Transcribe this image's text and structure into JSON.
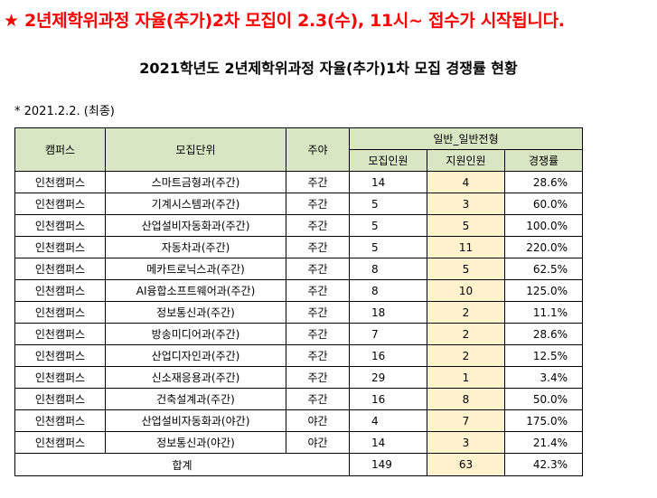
{
  "notice": "★ 2년제학위과정 자율(추가)2차 모집이 2.3(수), 11시~ 접수가 시작됩니다.",
  "title": "2021학년도 2년제학위과정 자율(추가)1차 모집 경쟁률 현황",
  "date_note": "* 2021.2.2. (최종)",
  "table": {
    "headers": {
      "campus": "캠퍼스",
      "unit": "모집단위",
      "shift": "주야",
      "group": "일반_일반전형",
      "quota": "모집인원",
      "applicants": "지원인원",
      "ratio": "경쟁률"
    },
    "rows": [
      {
        "campus": "인천캠퍼스",
        "unit": "스마트금형과(주간)",
        "shift": "주간",
        "quota": "14",
        "applicants": "4",
        "ratio": "28.6%"
      },
      {
        "campus": "인천캠퍼스",
        "unit": "기계시스템과(주간)",
        "shift": "주간",
        "quota": "5",
        "applicants": "3",
        "ratio": "60.0%"
      },
      {
        "campus": "인천캠퍼스",
        "unit": "산업설비자동화과(주간)",
        "shift": "주간",
        "quota": "5",
        "applicants": "5",
        "ratio": "100.0%"
      },
      {
        "campus": "인천캠퍼스",
        "unit": "자동차과(주간)",
        "shift": "주간",
        "quota": "5",
        "applicants": "11",
        "ratio": "220.0%"
      },
      {
        "campus": "인천캠퍼스",
        "unit": "메카트로닉스과(주간)",
        "shift": "주간",
        "quota": "8",
        "applicants": "5",
        "ratio": "62.5%"
      },
      {
        "campus": "인천캠퍼스",
        "unit": "AI융합소프트웨어과(주간)",
        "shift": "주간",
        "quota": "8",
        "applicants": "10",
        "ratio": "125.0%"
      },
      {
        "campus": "인천캠퍼스",
        "unit": "정보통신과(주간)",
        "shift": "주간",
        "quota": "18",
        "applicants": "2",
        "ratio": "11.1%"
      },
      {
        "campus": "인천캠퍼스",
        "unit": "방송미디어과(주간)",
        "shift": "주간",
        "quota": "7",
        "applicants": "2",
        "ratio": "28.6%"
      },
      {
        "campus": "인천캠퍼스",
        "unit": "산업디자인과(주간)",
        "shift": "주간",
        "quota": "16",
        "applicants": "2",
        "ratio": "12.5%"
      },
      {
        "campus": "인천캠퍼스",
        "unit": "신소재응용과(주간)",
        "shift": "주간",
        "quota": "29",
        "applicants": "1",
        "ratio": "3.4%"
      },
      {
        "campus": "인천캠퍼스",
        "unit": "건축설계과(주간)",
        "shift": "주간",
        "quota": "16",
        "applicants": "8",
        "ratio": "50.0%"
      },
      {
        "campus": "인천캠퍼스",
        "unit": "산업설비자동화과(야간)",
        "shift": "야간",
        "quota": "4",
        "applicants": "7",
        "ratio": "175.0%"
      },
      {
        "campus": "인천캠퍼스",
        "unit": "정보통신과(야간)",
        "shift": "야간",
        "quota": "14",
        "applicants": "3",
        "ratio": "21.4%"
      }
    ],
    "total": {
      "label": "합계",
      "quota": "149",
      "applicants": "63",
      "ratio": "42.3%"
    }
  }
}
